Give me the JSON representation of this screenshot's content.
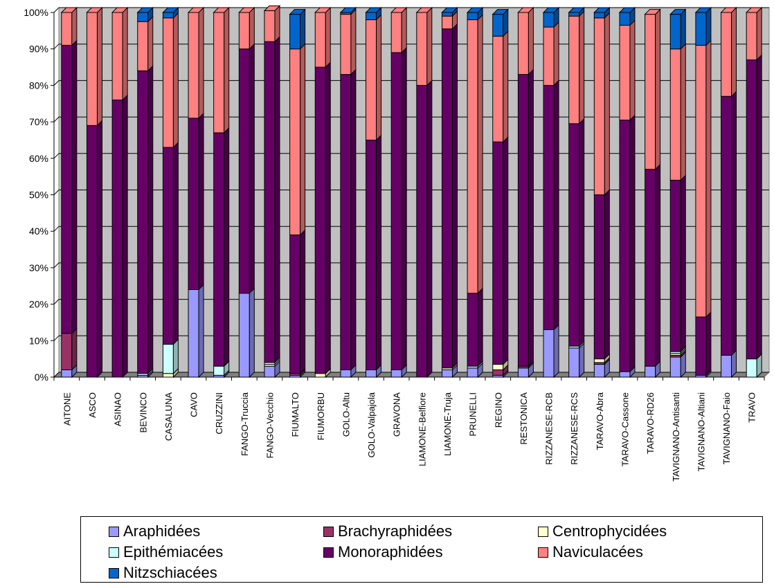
{
  "chart_data": {
    "type": "bar",
    "stacked": true,
    "percent": true,
    "ylim": [
      0,
      100
    ],
    "yticks": [
      "0%",
      "10%",
      "20%",
      "30%",
      "40%",
      "50%",
      "60%",
      "70%",
      "80%",
      "90%",
      "100%"
    ],
    "grid": true,
    "legend": "bottom",
    "categories": [
      "AITONE",
      "ASCO",
      "ASINAO",
      "BEVINCO",
      "CASALUNA",
      "CAVO",
      "CRUZZINI",
      "FANGO-Truccia",
      "FANGO-Vecchio",
      "FIUMALTO",
      "FIUMORBU",
      "GOLO-Altu",
      "GOLO-Valpajola",
      "GRAVONA",
      "LIAMONE-Belfiore",
      "LIAMONE-Truja",
      "PRUNELLI",
      "REGINO",
      "RESTONICA",
      "RIZZANESE-RCB",
      "RIZZANESE-RCS",
      "TARAVO-Abra",
      "TARAVO-Cassone",
      "TARAVO-RD26",
      "TAVIGNANO-Antisanti",
      "TAVIGNANO-Altiani",
      "TAVIGNANO-Faio",
      "TRAVO"
    ],
    "series": [
      {
        "name": "Araphidées",
        "color": "#9999ff",
        "values": [
          2,
          0,
          0,
          0.5,
          0,
          24,
          0.5,
          23,
          3,
          0.5,
          0,
          2,
          2,
          2,
          0,
          2,
          2.5,
          0.5,
          2.5,
          13,
          8,
          3.5,
          1.5,
          3,
          5.5,
          0.5,
          6,
          0
        ]
      },
      {
        "name": "Brachyraphidées",
        "color": "#993366",
        "values": [
          10,
          0,
          0,
          0,
          0,
          0,
          0,
          0,
          0,
          0.5,
          0,
          0,
          0,
          0,
          0,
          0,
          0,
          1.5,
          0.5,
          0,
          0,
          0.5,
          0,
          0,
          0.5,
          0,
          0,
          0
        ]
      },
      {
        "name": "Centrophycidées",
        "color": "#ffffcc",
        "values": [
          0,
          0,
          0,
          0,
          1,
          0,
          0,
          0,
          0.5,
          0,
          1,
          0,
          0,
          0,
          0,
          0.5,
          0,
          1.5,
          0,
          0,
          0,
          1,
          0,
          0,
          0.5,
          0,
          0,
          0
        ]
      },
      {
        "name": "Epithémiacées",
        "color": "#ccffff",
        "values": [
          0,
          0,
          0,
          0.5,
          8,
          0,
          2.5,
          0,
          0.5,
          0,
          0,
          0,
          0,
          0,
          0,
          0,
          0.5,
          0,
          0,
          0,
          0.5,
          0,
          0,
          0,
          0.5,
          0,
          0,
          5
        ]
      },
      {
        "name": "Monoraphidées",
        "color": "#660066",
        "values": [
          79,
          69,
          76,
          83,
          54,
          47,
          64,
          67,
          88,
          38,
          84,
          81,
          63,
          87,
          80,
          93,
          20,
          61,
          80,
          67,
          61,
          45,
          69,
          54,
          47,
          16,
          71,
          82
        ]
      },
      {
        "name": "Naviculacées",
        "color": "#ff8080",
        "values": [
          9,
          31,
          24,
          13.5,
          35.5,
          29,
          33,
          10,
          8.5,
          51,
          15,
          16.5,
          33,
          11,
          20,
          3.5,
          75,
          29,
          17,
          16,
          29.5,
          48.5,
          26,
          42.5,
          36,
          74.5,
          23,
          13
        ]
      },
      {
        "name": "Nitzschiacées",
        "color": "#0066cc",
        "values": [
          0,
          0,
          0,
          2.5,
          1.5,
          0,
          0,
          0,
          0,
          9.5,
          0,
          0.5,
          2,
          0,
          0,
          1,
          2,
          6,
          0,
          4,
          1,
          1.5,
          3.5,
          0,
          9.5,
          9,
          0,
          0
        ]
      }
    ]
  }
}
